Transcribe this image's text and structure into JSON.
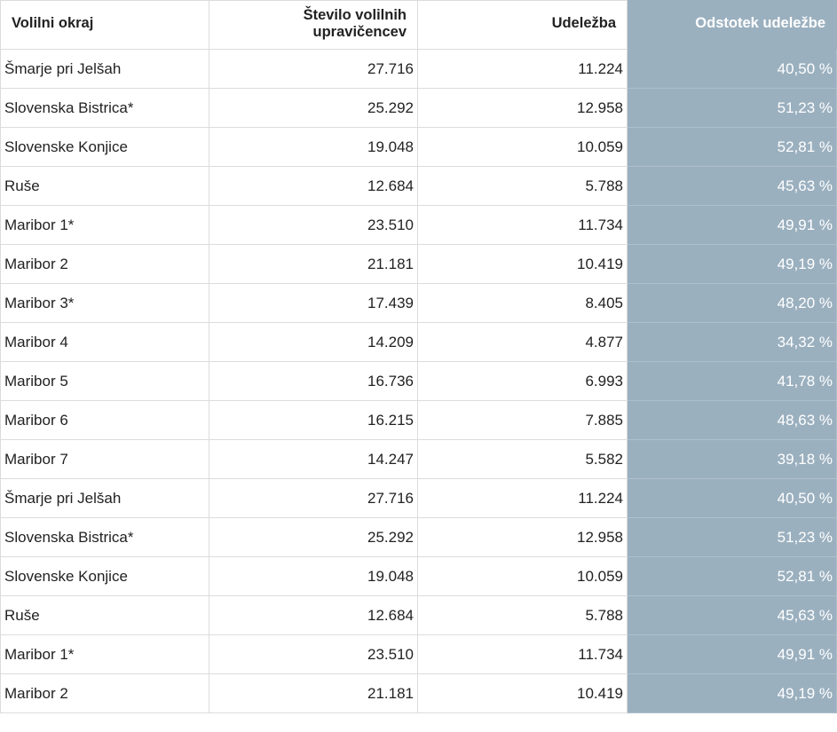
{
  "table": {
    "headers": {
      "district": "Volilni okraj",
      "voters": "Število volilnih upravičencev",
      "turnout": "Udeležba",
      "percent": "Odstotek udeležbe"
    },
    "rows": [
      {
        "district": "Šmarje pri Jelšah",
        "voters": "27.716",
        "turnout": "11.224",
        "percent": "40,50 %"
      },
      {
        "district": "Slovenska Bistrica*",
        "voters": "25.292",
        "turnout": "12.958",
        "percent": "51,23 %"
      },
      {
        "district": "Slovenske Konjice",
        "voters": "19.048",
        "turnout": "10.059",
        "percent": "52,81 %"
      },
      {
        "district": "Ruše",
        "voters": "12.684",
        "turnout": "5.788",
        "percent": "45,63 %"
      },
      {
        "district": "Maribor 1*",
        "voters": "23.510",
        "turnout": "11.734",
        "percent": "49,91 %"
      },
      {
        "district": "Maribor 2",
        "voters": "21.181",
        "turnout": "10.419",
        "percent": "49,19 %"
      },
      {
        "district": "Maribor 3*",
        "voters": "17.439",
        "turnout": "8.405",
        "percent": "48,20 %"
      },
      {
        "district": "Maribor 4",
        "voters": "14.209",
        "turnout": "4.877",
        "percent": "34,32 %"
      },
      {
        "district": "Maribor 5",
        "voters": "16.736",
        "turnout": "6.993",
        "percent": "41,78 %"
      },
      {
        "district": "Maribor 6",
        "voters": "16.215",
        "turnout": "7.885",
        "percent": "48,63 %"
      },
      {
        "district": "Maribor 7",
        "voters": "14.247",
        "turnout": "5.582",
        "percent": "39,18 %"
      },
      {
        "district": "Šmarje pri Jelšah",
        "voters": "27.716",
        "turnout": "11.224",
        "percent": "40,50 %"
      },
      {
        "district": "Slovenska Bistrica*",
        "voters": "25.292",
        "turnout": "12.958",
        "percent": "51,23 %"
      },
      {
        "district": "Slovenske Konjice",
        "voters": "19.048",
        "turnout": "10.059",
        "percent": "52,81 %"
      },
      {
        "district": "Ruše",
        "voters": "12.684",
        "turnout": "5.788",
        "percent": "45,63 %"
      },
      {
        "district": "Maribor 1*",
        "voters": "23.510",
        "turnout": "11.734",
        "percent": "49,91 %"
      },
      {
        "district": "Maribor 2",
        "voters": "21.181",
        "turnout": "10.419",
        "percent": "49,19 %"
      }
    ]
  },
  "colors": {
    "highlight_column": "#9bb0bf",
    "highlight_text": "#ffffff",
    "grid": "#dcdcdc"
  }
}
